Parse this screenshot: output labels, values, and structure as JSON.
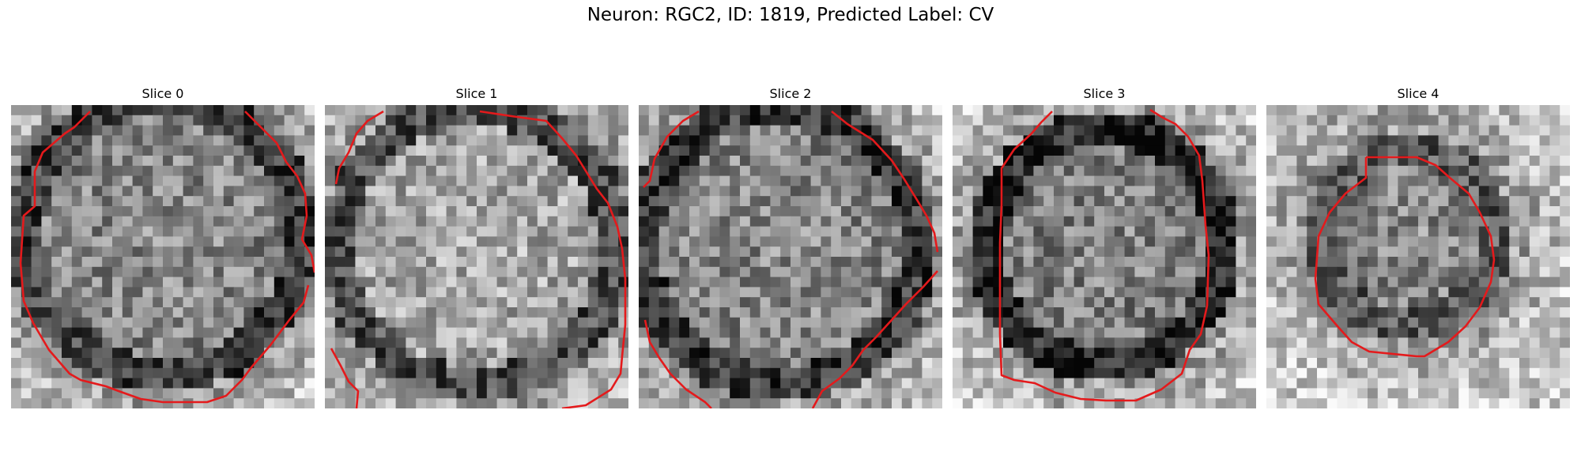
{
  "figure": {
    "title": "Neuron: RGC2, ID: 1819, Predicted Label: CV",
    "contour_color": "#e41a1c"
  },
  "panels": [
    {
      "title": "Slice 0"
    },
    {
      "title": "Slice 1"
    },
    {
      "title": "Slice 2"
    },
    {
      "title": "Slice 3"
    },
    {
      "title": "Slice 4"
    }
  ]
}
